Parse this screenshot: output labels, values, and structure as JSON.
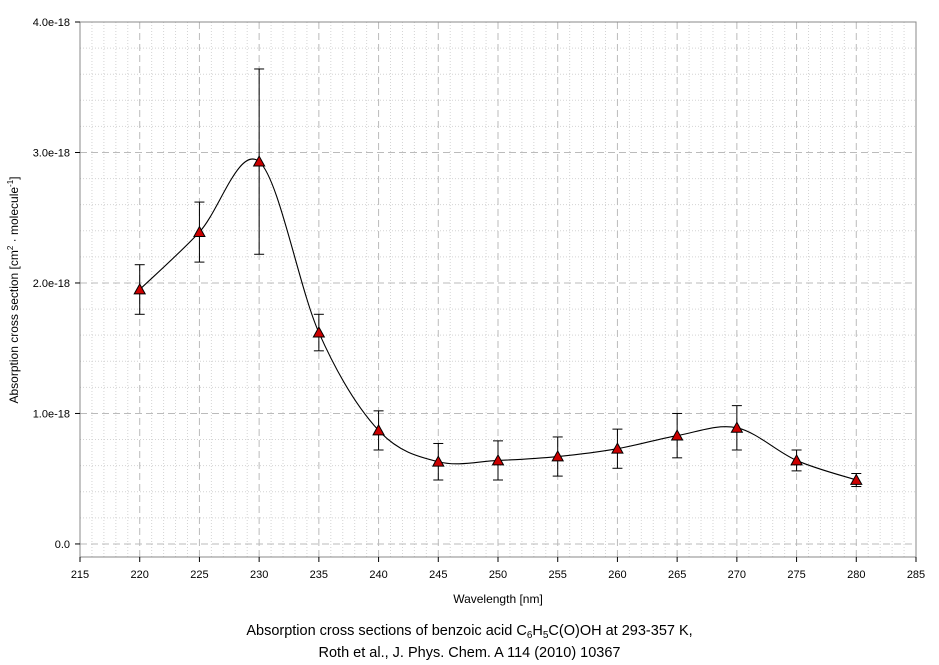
{
  "chart_data": {
    "type": "scatter",
    "caption": {
      "line1_prefix": "Absorption cross sections of benzoic acid C",
      "sub1": "6",
      "mid1": "H",
      "sub2": "5",
      "line1_suffix": "C(O)OH at 293-357 K,",
      "line2": "Roth et al., J. Phys. Chem. A 114 (2010) 10367"
    },
    "xlabel": "Wavelength [nm]",
    "ylabel": {
      "prefix": "Absorption cross section [cm",
      "sup1": "2",
      "middle": " · molecule",
      "sup2": "-1",
      "suffix": "]"
    },
    "xlim": [
      215,
      285
    ],
    "ylim": [
      -1e-19,
      4e-18
    ],
    "x_ticks": [
      215,
      220,
      225,
      230,
      235,
      240,
      245,
      250,
      255,
      260,
      265,
      270,
      275,
      280,
      285
    ],
    "y_ticks": [
      {
        "value": 0,
        "label": "0.0"
      },
      {
        "value": 1e-18,
        "label": "1.0e-18"
      },
      {
        "value": 2e-18,
        "label": "2.0e-18"
      },
      {
        "value": 3e-18,
        "label": "3.0e-18"
      },
      {
        "value": 4e-18,
        "label": "4.0e-18"
      }
    ],
    "grid": true,
    "marker": "triangle",
    "marker_color": "#cc0000",
    "line_color": "#000000",
    "points": [
      {
        "x": 220,
        "y": 1.95e-18,
        "err": 1.9e-19
      },
      {
        "x": 225,
        "y": 2.39e-18,
        "err": 2.3e-19
      },
      {
        "x": 230,
        "y": 2.93e-18,
        "err": 7.1e-19
      },
      {
        "x": 235,
        "y": 1.62e-18,
        "err": 1.4e-19
      },
      {
        "x": 240,
        "y": 8.7e-19,
        "err": 1.5e-19
      },
      {
        "x": 245,
        "y": 6.3e-19,
        "err": 1.4e-19
      },
      {
        "x": 250,
        "y": 6.4e-19,
        "err": 1.5e-19
      },
      {
        "x": 255,
        "y": 6.7e-19,
        "err": 1.5e-19
      },
      {
        "x": 260,
        "y": 7.3e-19,
        "err": 1.5e-19
      },
      {
        "x": 265,
        "y": 8.3e-19,
        "err": 1.7e-19
      },
      {
        "x": 270,
        "y": 8.9e-19,
        "err": 1.7e-19
      },
      {
        "x": 275,
        "y": 6.4e-19,
        "err": 8e-20
      },
      {
        "x": 280,
        "y": 4.9e-19,
        "err": 5e-20
      }
    ]
  }
}
